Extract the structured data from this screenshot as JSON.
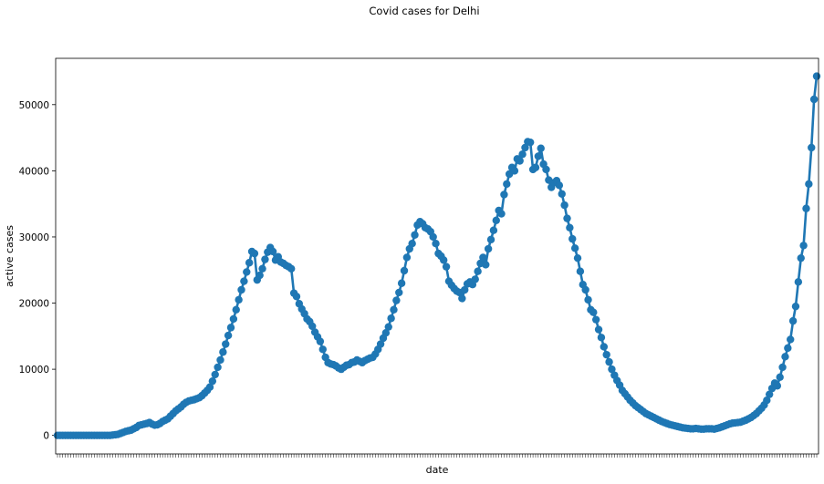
{
  "figure": {
    "title": "Covid cases for Delhi"
  },
  "colors": {
    "series": "#1f77b4",
    "axis": "#000000",
    "background": "#ffffff"
  },
  "chart_data": {
    "type": "line",
    "title": "Covid cases for Delhi",
    "xlabel": "date",
    "ylabel": "active cases",
    "ylim": [
      -2800,
      57000
    ],
    "yticks": [
      0,
      10000,
      20000,
      30000,
      40000,
      50000
    ],
    "ytick_labels": [
      "0",
      "10000",
      "20000",
      "30000",
      "40000",
      "50000"
    ],
    "x_tick_labels_visible": false,
    "grid": false,
    "legend": "none",
    "markers": true,
    "series": [
      {
        "values": [
          0,
          0,
          0,
          0,
          0,
          0,
          0,
          0,
          0,
          0,
          0,
          0,
          0,
          0,
          0,
          0,
          0,
          0,
          0,
          0,
          0,
          50,
          100,
          150,
          300,
          450,
          600,
          700,
          800,
          1000,
          1200,
          1500,
          1600,
          1700,
          1800,
          1950,
          1700,
          1550,
          1600,
          1800,
          2100,
          2300,
          2500,
          2900,
          3300,
          3700,
          4000,
          4300,
          4700,
          5000,
          5200,
          5300,
          5400,
          5550,
          5700,
          6000,
          6400,
          6800,
          7300,
          8200,
          9200,
          10300,
          11400,
          12600,
          13800,
          15100,
          16300,
          17600,
          19000,
          20500,
          22000,
          23300,
          24700,
          26100,
          27800,
          27500,
          23500,
          24200,
          25200,
          26600,
          27700,
          28400,
          27800,
          26500,
          27000,
          26200,
          26000,
          25700,
          25500,
          25200,
          21500,
          21000,
          19900,
          19100,
          18400,
          17600,
          17200,
          16500,
          15600,
          14900,
          14200,
          13000,
          11800,
          11000,
          10800,
          10700,
          10500,
          10200,
          10000,
          10300,
          10600,
          10700,
          11000,
          11100,
          11400,
          11200,
          11000,
          11300,
          11500,
          11700,
          11800,
          12300,
          13000,
          13800,
          14700,
          15500,
          16400,
          17700,
          19000,
          20400,
          21600,
          23000,
          24900,
          26900,
          28200,
          29000,
          30300,
          31800,
          32300,
          32000,
          31400,
          31200,
          30800,
          30000,
          29000,
          27500,
          27100,
          26500,
          25500,
          23300,
          22700,
          22200,
          21800,
          21600,
          20700,
          22000,
          22900,
          23200,
          22800,
          23600,
          24800,
          26000,
          26900,
          25800,
          28200,
          29600,
          31000,
          32500,
          34000,
          33500,
          36400,
          38000,
          39500,
          40500,
          40000,
          41800,
          41500,
          42500,
          43500,
          44400,
          44300,
          40200,
          40500,
          42200,
          43400,
          41000,
          40200,
          38600,
          37500,
          38200,
          38500,
          37800,
          36500,
          34800,
          32800,
          31400,
          29700,
          28300,
          26800,
          24800,
          22800,
          22000,
          20500,
          19000,
          18600,
          17500,
          16000,
          14800,
          13400,
          12200,
          11100,
          10000,
          9100,
          8300,
          7600,
          6800,
          6300,
          5800,
          5300,
          4900,
          4500,
          4200,
          3900,
          3600,
          3300,
          3100,
          2900,
          2700,
          2500,
          2300,
          2100,
          1950,
          1800,
          1650,
          1550,
          1450,
          1350,
          1250,
          1150,
          1100,
          1050,
          1000,
          1000,
          1050,
          1000,
          950,
          950,
          1000,
          1000,
          1000,
          950,
          1050,
          1150,
          1300,
          1450,
          1600,
          1750,
          1850,
          1900,
          1950,
          2000,
          2150,
          2300,
          2500,
          2700,
          3000,
          3300,
          3700,
          4100,
          4600,
          5300,
          6200,
          7100,
          7900,
          7500,
          8800,
          10300,
          11900,
          13200,
          14500,
          17300,
          19500,
          23200,
          26800,
          28700,
          34300,
          38000,
          43500,
          50800,
          54300
        ]
      }
    ]
  }
}
